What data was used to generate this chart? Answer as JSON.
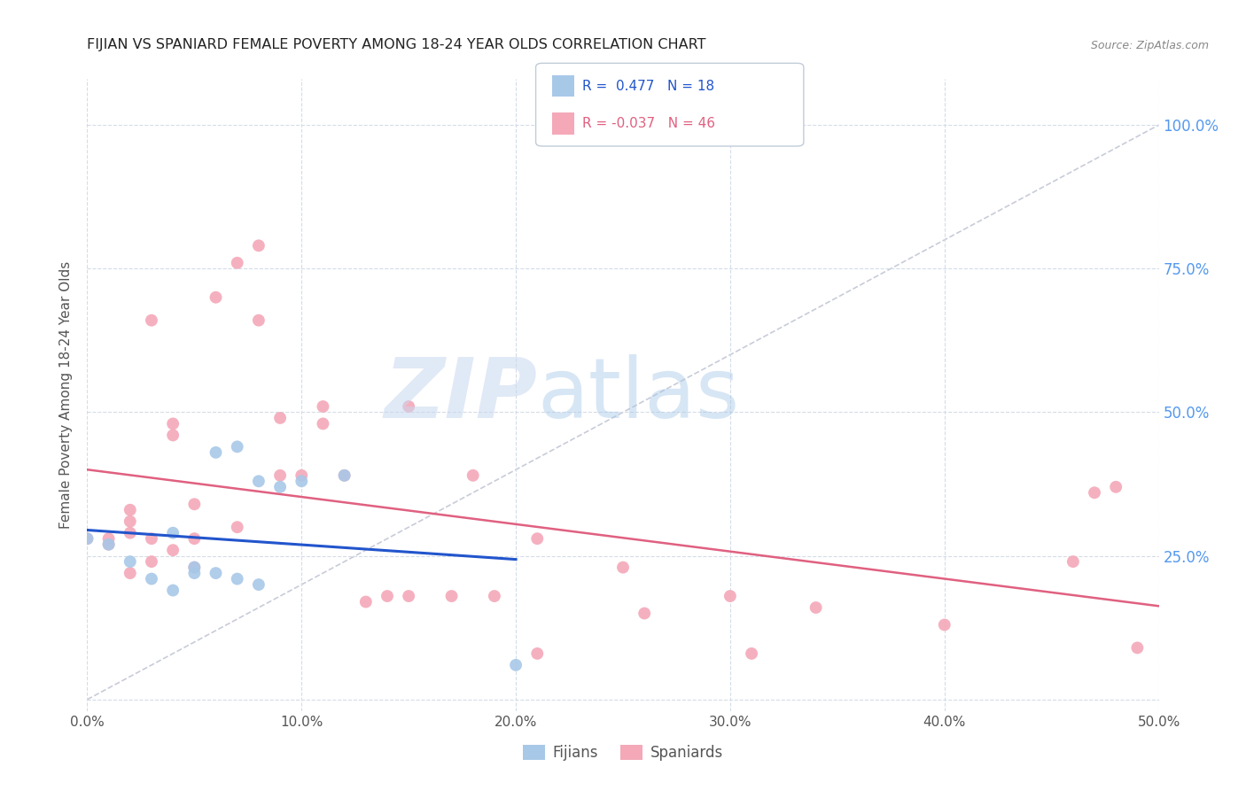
{
  "title": "FIJIAN VS SPANIARD FEMALE POVERTY AMONG 18-24 YEAR OLDS CORRELATION CHART",
  "source": "Source: ZipAtlas.com",
  "ylabel": "Female Poverty Among 18-24 Year Olds",
  "xlim": [
    0.0,
    0.5
  ],
  "ylim": [
    -0.02,
    1.08
  ],
  "xtick_vals": [
    0.0,
    0.1,
    0.2,
    0.3,
    0.4,
    0.5
  ],
  "ytick_vals": [
    0.0,
    0.25,
    0.5,
    0.75,
    1.0
  ],
  "fijian_color": "#a8c8e8",
  "spaniard_color": "#f4a8b8",
  "fijian_line_color": "#2255cc",
  "spaniard_line_color": "#e06080",
  "diagonal_color": "#c8ccd8",
  "right_tick_color": "#5599ee",
  "background_color": "#ffffff",
  "grid_color": "#d4dce8",
  "title_color": "#222222",
  "axis_label_color": "#555555",
  "legend_fijian_label": "Fijians",
  "legend_spaniard_label": "Spaniards",
  "fijian_R": 0.477,
  "fijian_N": 18,
  "spaniard_R": -0.037,
  "spaniard_N": 46,
  "fijians_x": [
    0.0,
    0.01,
    0.02,
    0.03,
    0.04,
    0.04,
    0.05,
    0.05,
    0.06,
    0.06,
    0.07,
    0.07,
    0.08,
    0.08,
    0.09,
    0.1,
    0.12,
    0.2
  ],
  "fijians_y": [
    0.28,
    0.27,
    0.24,
    0.21,
    0.19,
    0.29,
    0.22,
    0.23,
    0.22,
    0.43,
    0.44,
    0.21,
    0.2,
    0.38,
    0.37,
    0.38,
    0.39,
    0.06
  ],
  "spaniards_x": [
    0.0,
    0.01,
    0.01,
    0.02,
    0.02,
    0.02,
    0.02,
    0.03,
    0.03,
    0.03,
    0.04,
    0.04,
    0.04,
    0.05,
    0.05,
    0.05,
    0.06,
    0.07,
    0.07,
    0.08,
    0.08,
    0.09,
    0.09,
    0.1,
    0.11,
    0.11,
    0.12,
    0.13,
    0.14,
    0.15,
    0.15,
    0.17,
    0.18,
    0.19,
    0.21,
    0.21,
    0.25,
    0.26,
    0.3,
    0.31,
    0.34,
    0.4,
    0.46,
    0.47,
    0.48,
    0.49
  ],
  "spaniards_y": [
    0.28,
    0.27,
    0.28,
    0.22,
    0.29,
    0.31,
    0.33,
    0.24,
    0.28,
    0.66,
    0.26,
    0.46,
    0.48,
    0.23,
    0.28,
    0.34,
    0.7,
    0.3,
    0.76,
    0.79,
    0.66,
    0.39,
    0.49,
    0.39,
    0.48,
    0.51,
    0.39,
    0.17,
    0.18,
    0.51,
    0.18,
    0.18,
    0.39,
    0.18,
    0.28,
    0.08,
    0.23,
    0.15,
    0.18,
    0.08,
    0.16,
    0.13,
    0.24,
    0.36,
    0.37,
    0.09
  ]
}
